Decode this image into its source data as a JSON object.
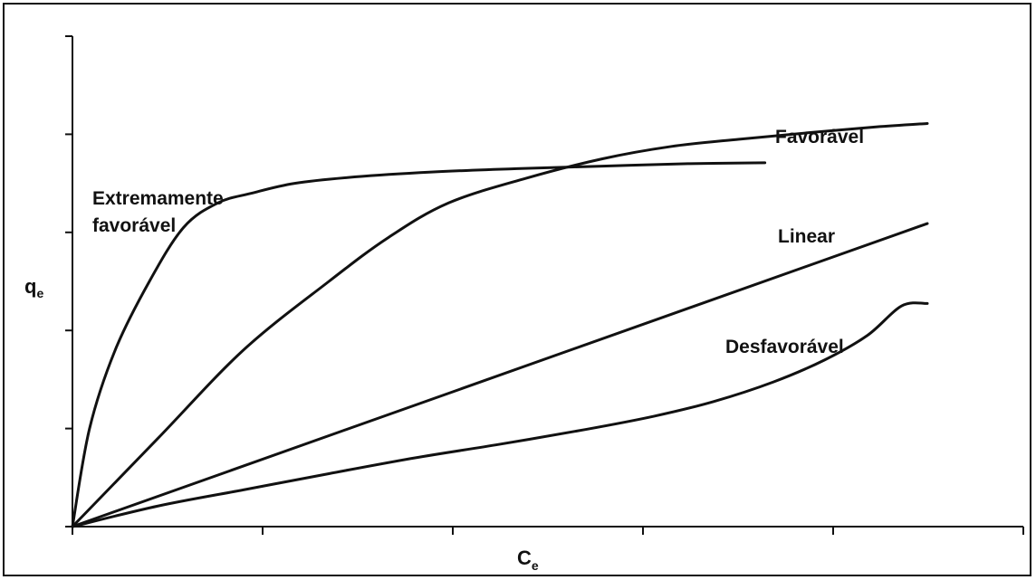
{
  "chart_data": {
    "type": "line",
    "title": "",
    "xlabel": {
      "main": "C",
      "sub": "e"
    },
    "ylabel": {
      "main": "q",
      "sub": "e"
    },
    "xlim": [
      0,
      1
    ],
    "ylim": [
      0,
      1
    ],
    "x_tick_count": 5,
    "y_tick_count": 5,
    "grid": false,
    "series": [
      {
        "name": "Extremamente favorável",
        "label_lines": [
          "Extremamente",
          "favorável"
        ],
        "points": [
          [
            0,
            0
          ],
          [
            0.02,
            0.2
          ],
          [
            0.05,
            0.36
          ],
          [
            0.09,
            0.5
          ],
          [
            0.13,
            0.61
          ],
          [
            0.17,
            0.66
          ],
          [
            0.21,
            0.68
          ],
          [
            0.26,
            0.7
          ],
          [
            0.33,
            0.713
          ],
          [
            0.42,
            0.723
          ],
          [
            0.52,
            0.73
          ],
          [
            0.62,
            0.735
          ],
          [
            0.72,
            0.74
          ],
          [
            0.81,
            0.742
          ]
        ]
      },
      {
        "name": "Favorável",
        "label_lines": [
          "Favorável"
        ],
        "points": [
          [
            0,
            0
          ],
          [
            0.1,
            0.18
          ],
          [
            0.2,
            0.36
          ],
          [
            0.3,
            0.5
          ],
          [
            0.37,
            0.59
          ],
          [
            0.44,
            0.66
          ],
          [
            0.53,
            0.71
          ],
          [
            0.62,
            0.75
          ],
          [
            0.7,
            0.775
          ],
          [
            0.78,
            0.79
          ],
          [
            0.86,
            0.803
          ],
          [
            0.94,
            0.815
          ],
          [
            1.0,
            0.822
          ]
        ]
      },
      {
        "name": "Linear",
        "label_lines": [
          "Linear"
        ],
        "points": [
          [
            0,
            0
          ],
          [
            1.0,
            0.618
          ]
        ]
      },
      {
        "name": "Desfavorável",
        "label_lines": [
          "Desfavorável"
        ],
        "points": [
          [
            0,
            0
          ],
          [
            0.1,
            0.042
          ],
          [
            0.2,
            0.075
          ],
          [
            0.3,
            0.108
          ],
          [
            0.4,
            0.14
          ],
          [
            0.5,
            0.168
          ],
          [
            0.6,
            0.198
          ],
          [
            0.68,
            0.225
          ],
          [
            0.75,
            0.255
          ],
          [
            0.82,
            0.295
          ],
          [
            0.88,
            0.34
          ],
          [
            0.93,
            0.39
          ],
          [
            0.97,
            0.45
          ],
          [
            1.0,
            0.455
          ]
        ]
      }
    ]
  }
}
